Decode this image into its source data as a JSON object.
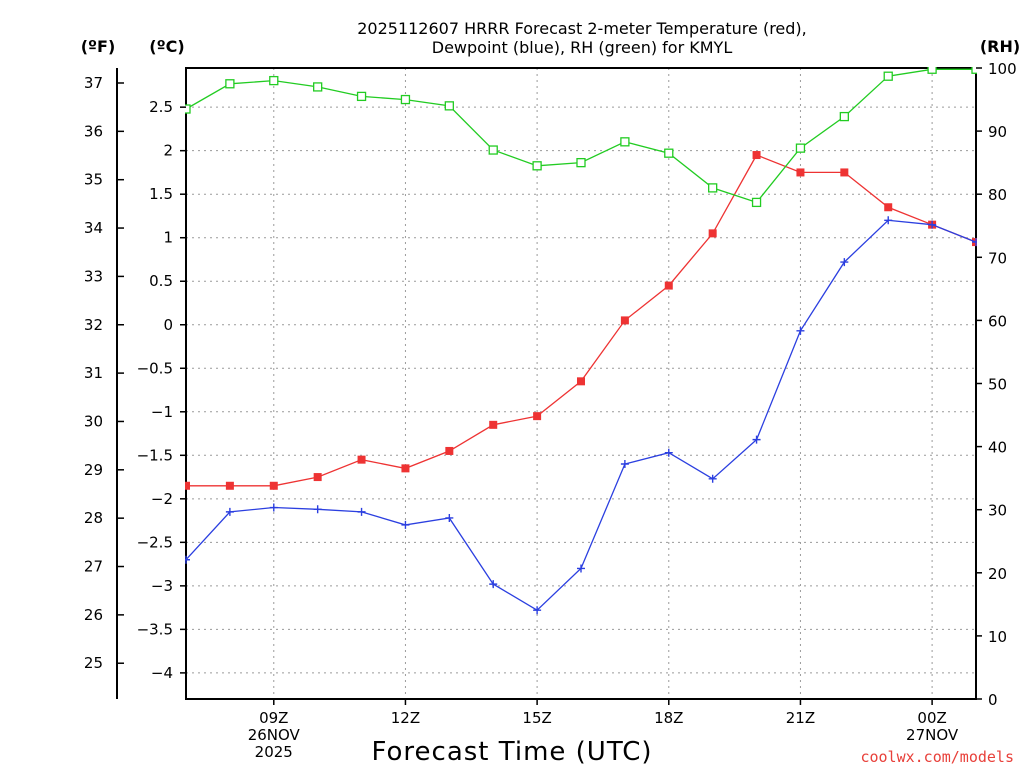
{
  "chart_data": {
    "type": "line",
    "title_line1": "2025112607 HRRR Forecast 2-meter Temperature (red),",
    "title_line2": "Dewpoint (blue), RH (green) for KMYL",
    "xlabel": "Forecast Time (UTC)",
    "credit": "coolwx.com/models",
    "units": {
      "fahrenheit": "(ºF)",
      "celsius": "(ºC)",
      "rh": "(RH)"
    },
    "x_hours": [
      7,
      8,
      9,
      10,
      11,
      12,
      13,
      14,
      15,
      16,
      17,
      18,
      19,
      20,
      21,
      22,
      23,
      24,
      25
    ],
    "xlim": [
      7,
      25
    ],
    "x_ticks": [
      {
        "hour": 9,
        "lines": [
          "09Z",
          "26NOV",
          "2025"
        ]
      },
      {
        "hour": 12,
        "lines": [
          "12Z"
        ]
      },
      {
        "hour": 15,
        "lines": [
          "15Z"
        ]
      },
      {
        "hour": 18,
        "lines": [
          "18Z"
        ]
      },
      {
        "hour": 21,
        "lines": [
          "21Z"
        ]
      },
      {
        "hour": 24,
        "lines": [
          "00Z",
          "27NOV"
        ]
      }
    ],
    "celsius_axis": {
      "range": [
        -4.3,
        2.95
      ],
      "ticks": [
        -4,
        -3.5,
        -3,
        -2.5,
        -2,
        -1.5,
        -1,
        -0.5,
        0,
        0.5,
        1,
        1.5,
        2,
        2.5
      ],
      "tick_labels": [
        "−4",
        "−3.5",
        "−3",
        "−2.5",
        "−2",
        "−1.5",
        "−1",
        "−0.5",
        "0",
        "0.5",
        "1",
        "1.5",
        "2",
        "2.5"
      ]
    },
    "fahrenheit_axis": {
      "ticks": [
        25,
        26,
        27,
        28,
        29,
        30,
        31,
        32,
        33,
        34,
        35,
        36,
        37
      ],
      "tick_labels": [
        "25",
        "26",
        "27",
        "28",
        "29",
        "30",
        "31",
        "32",
        "33",
        "34",
        "35",
        "36",
        "37"
      ]
    },
    "rh_axis": {
      "range": [
        0,
        100
      ],
      "ticks": [
        0,
        10,
        20,
        30,
        40,
        50,
        60,
        70,
        80,
        90,
        100
      ],
      "tick_labels": [
        "0",
        "10",
        "20",
        "30",
        "40",
        "50",
        "60",
        "70",
        "80",
        "90",
        "100"
      ]
    },
    "series": [
      {
        "name": "Temperature",
        "units": "C",
        "color": "#ee3333",
        "marker": "filled-square",
        "values": [
          -1.85,
          -1.85,
          -1.85,
          -1.75,
          -1.55,
          -1.65,
          -1.45,
          -1.15,
          -1.05,
          -0.65,
          0.05,
          0.45,
          1.05,
          1.95,
          1.75,
          1.75,
          1.35,
          1.15,
          0.95
        ]
      },
      {
        "name": "Dewpoint",
        "units": "C",
        "color": "#2b3fe0",
        "marker": "plus",
        "values": [
          -2.7,
          -2.15,
          -2.1,
          -2.12,
          -2.15,
          -2.3,
          -2.22,
          -2.98,
          -3.28,
          -2.8,
          -1.6,
          -1.47,
          -1.77,
          -1.32,
          -0.07,
          0.72,
          1.2,
          1.15,
          0.95
        ]
      },
      {
        "name": "RH",
        "units": "%",
        "color": "#22cc22",
        "marker": "open-square",
        "values": [
          93.5,
          97.5,
          98,
          97,
          95.5,
          95,
          94,
          87,
          84.5,
          85,
          88.3,
          86.5,
          81,
          78.7,
          87.3,
          92.3,
          98.7,
          99.8,
          99.8
        ]
      }
    ]
  }
}
